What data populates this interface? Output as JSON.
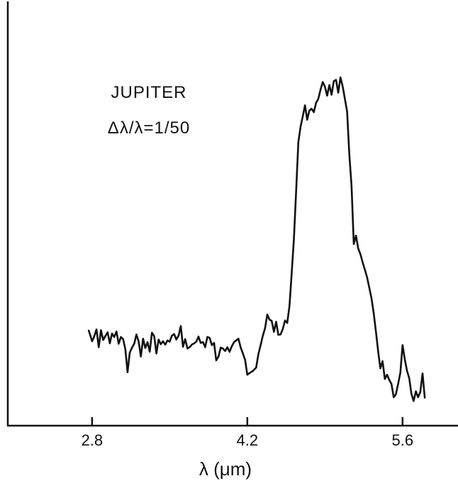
{
  "chart_data": {
    "type": "line",
    "title": "",
    "xlabel": "λ (μm)",
    "ylabel": "",
    "xlim": [
      2.04,
      6.1
    ],
    "ylim": [
      0,
      1
    ],
    "y_ticks_shown": false,
    "grid": false,
    "x_ticks": [
      {
        "value": 2.8,
        "label": "2.8"
      },
      {
        "value": 4.2,
        "label": "4.2"
      },
      {
        "value": 5.6,
        "label": "5.6"
      }
    ],
    "annotations": [
      "JUPITER",
      "Δλ/λ=1/50"
    ],
    "series": [
      {
        "name": "",
        "color": "#111111",
        "points": [
          [
            2.77,
            0.224
          ],
          [
            2.8,
            0.199
          ],
          [
            2.82,
            0.211
          ],
          [
            2.84,
            0.227
          ],
          [
            2.86,
            0.185
          ],
          [
            2.88,
            0.225
          ],
          [
            2.9,
            0.202
          ],
          [
            2.92,
            0.211
          ],
          [
            2.94,
            0.22
          ],
          [
            2.96,
            0.194
          ],
          [
            2.98,
            0.217
          ],
          [
            3.0,
            0.209
          ],
          [
            3.02,
            0.222
          ],
          [
            3.04,
            0.193
          ],
          [
            3.06,
            0.209
          ],
          [
            3.08,
            0.204
          ],
          [
            3.1,
            0.18
          ],
          [
            3.12,
            0.126
          ],
          [
            3.14,
            0.172
          ],
          [
            3.16,
            0.184
          ],
          [
            3.18,
            0.193
          ],
          [
            3.2,
            0.215
          ],
          [
            3.22,
            0.198
          ],
          [
            3.24,
            0.163
          ],
          [
            3.26,
            0.205
          ],
          [
            3.28,
            0.183
          ],
          [
            3.3,
            0.197
          ],
          [
            3.32,
            0.174
          ],
          [
            3.34,
            0.219
          ],
          [
            3.36,
            0.211
          ],
          [
            3.38,
            0.17
          ],
          [
            3.4,
            0.203
          ],
          [
            3.42,
            0.192
          ],
          [
            3.44,
            0.199
          ],
          [
            3.46,
            0.191
          ],
          [
            3.48,
            0.201
          ],
          [
            3.5,
            0.198
          ],
          [
            3.52,
            0.212
          ],
          [
            3.54,
            0.216
          ],
          [
            3.56,
            0.203
          ],
          [
            3.58,
            0.212
          ],
          [
            3.6,
            0.235
          ],
          [
            3.62,
            0.186
          ],
          [
            3.64,
            0.204
          ],
          [
            3.66,
            0.182
          ],
          [
            3.68,
            0.185
          ],
          [
            3.7,
            0.191
          ],
          [
            3.72,
            0.194
          ],
          [
            3.74,
            0.198
          ],
          [
            3.76,
            0.21
          ],
          [
            3.78,
            0.195
          ],
          [
            3.8,
            0.197
          ],
          [
            3.82,
            0.185
          ],
          [
            3.84,
            0.209
          ],
          [
            3.86,
            0.207
          ],
          [
            3.88,
            0.19
          ],
          [
            3.9,
            0.195
          ],
          [
            3.92,
            0.154
          ],
          [
            3.94,
            0.163
          ],
          [
            3.96,
            0.184
          ],
          [
            3.98,
            0.182
          ],
          [
            4.0,
            0.176
          ],
          [
            4.02,
            0.185
          ],
          [
            4.04,
            0.174
          ],
          [
            4.06,
            0.187
          ],
          [
            4.08,
            0.197
          ],
          [
            4.1,
            0.201
          ],
          [
            4.12,
            0.205
          ],
          [
            4.14,
            0.185
          ],
          [
            4.16,
            0.17
          ],
          [
            4.18,
            0.155
          ],
          [
            4.2,
            0.12
          ],
          [
            4.22,
            0.124
          ],
          [
            4.25,
            0.129
          ],
          [
            4.28,
            0.137
          ],
          [
            4.3,
            0.169
          ],
          [
            4.32,
            0.19
          ],
          [
            4.34,
            0.212
          ],
          [
            4.36,
            0.23
          ],
          [
            4.38,
            0.262
          ],
          [
            4.4,
            0.25
          ],
          [
            4.42,
            0.247
          ],
          [
            4.44,
            0.221
          ],
          [
            4.46,
            0.245
          ],
          [
            4.48,
            0.214
          ],
          [
            4.5,
            0.215
          ],
          [
            4.52,
            0.228
          ],
          [
            4.54,
            0.248
          ],
          [
            4.56,
            0.242
          ],
          [
            4.58,
            0.282
          ],
          [
            4.6,
            0.359
          ],
          [
            4.62,
            0.439
          ],
          [
            4.64,
            0.553
          ],
          [
            4.66,
            0.668
          ],
          [
            4.68,
            0.704
          ],
          [
            4.7,
            0.729
          ],
          [
            4.72,
            0.755
          ],
          [
            4.74,
            0.721
          ],
          [
            4.76,
            0.743
          ],
          [
            4.78,
            0.747
          ],
          [
            4.8,
            0.739
          ],
          [
            4.82,
            0.761
          ],
          [
            4.84,
            0.77
          ],
          [
            4.86,
            0.792
          ],
          [
            4.88,
            0.81
          ],
          [
            4.9,
            0.799
          ],
          [
            4.92,
            0.778
          ],
          [
            4.94,
            0.803
          ],
          [
            4.96,
            0.78
          ],
          [
            4.98,
            0.812
          ],
          [
            5.0,
            0.815
          ],
          [
            5.02,
            0.785
          ],
          [
            5.04,
            0.821
          ],
          [
            5.06,
            0.8
          ],
          [
            5.08,
            0.77
          ],
          [
            5.1,
            0.74
          ],
          [
            5.12,
            0.64
          ],
          [
            5.14,
            0.563
          ],
          [
            5.16,
            0.428
          ],
          [
            5.18,
            0.448
          ],
          [
            5.2,
            0.418
          ],
          [
            5.22,
            0.404
          ],
          [
            5.24,
            0.385
          ],
          [
            5.26,
            0.368
          ],
          [
            5.28,
            0.35
          ],
          [
            5.3,
            0.325
          ],
          [
            5.32,
            0.3
          ],
          [
            5.34,
            0.265
          ],
          [
            5.36,
            0.221
          ],
          [
            5.38,
            0.175
          ],
          [
            5.4,
            0.135
          ],
          [
            5.42,
            0.152
          ],
          [
            5.44,
            0.11
          ],
          [
            5.46,
            0.12
          ],
          [
            5.48,
            0.108
          ],
          [
            5.5,
            0.098
          ],
          [
            5.52,
            0.067
          ],
          [
            5.54,
            0.074
          ],
          [
            5.56,
            0.098
          ],
          [
            5.58,
            0.125
          ],
          [
            5.6,
            0.19
          ],
          [
            5.62,
            0.157
          ],
          [
            5.64,
            0.129
          ],
          [
            5.66,
            0.112
          ],
          [
            5.68,
            0.075
          ],
          [
            5.7,
            0.058
          ],
          [
            5.72,
            0.081
          ],
          [
            5.74,
            0.067
          ],
          [
            5.76,
            0.079
          ],
          [
            5.78,
            0.123
          ],
          [
            5.8,
            0.066
          ]
        ]
      }
    ]
  }
}
